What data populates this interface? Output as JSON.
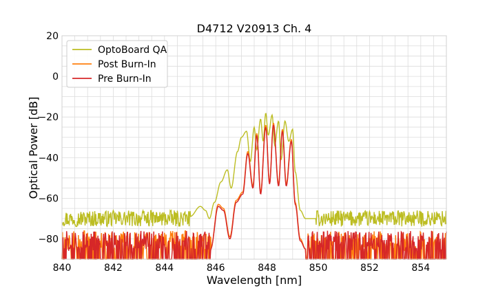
{
  "chart_data": {
    "type": "line",
    "title": "D4712 V20913 Ch. 4",
    "xlabel": "Wavelength [nm]",
    "ylabel": "Optical Power [dB]",
    "xlim": [
      840,
      855
    ],
    "ylim": [
      -90,
      20
    ],
    "xticks": [
      840,
      842,
      844,
      846,
      848,
      850,
      852,
      854
    ],
    "yticks": [
      -80,
      -60,
      -40,
      -20,
      0,
      20
    ],
    "grid": true,
    "legend_position": "top-left",
    "series": [
      {
        "name": "OptoBoard QA",
        "color": "#bcbd22",
        "noise_floor": -70,
        "x": [
          845.0,
          845.4,
          845.6,
          845.75,
          845.95,
          846.2,
          846.45,
          846.6,
          846.85,
          847.0,
          847.2,
          847.35,
          847.5,
          847.6,
          847.75,
          847.85,
          847.95,
          848.05,
          848.2,
          848.3,
          848.45,
          848.55,
          848.7,
          848.85,
          849.0,
          849.1,
          849.3,
          849.5,
          849.7,
          849.9
        ],
        "y": [
          -69,
          -64,
          -66,
          -70,
          -62,
          -52,
          -46,
          -55,
          -37,
          -30,
          -27,
          -42,
          -25,
          -36,
          -21,
          -32,
          -18,
          -29,
          -19,
          -34,
          -22,
          -41,
          -22,
          -32,
          -26,
          -47,
          -66,
          -70,
          -70,
          -70
        ]
      },
      {
        "name": "Post Burn-In",
        "color": "#ff7f0e",
        "noise_floor": -83,
        "x": [
          845.8,
          846.1,
          846.3,
          846.55,
          846.8,
          847.05,
          847.25,
          847.45,
          847.6,
          847.75,
          847.95,
          848.1,
          848.25,
          848.45,
          848.6,
          848.75,
          848.95,
          849.1,
          849.3,
          849.5
        ],
        "y": [
          -85,
          -63,
          -65,
          -79,
          -61,
          -57,
          -37,
          -54,
          -28,
          -57,
          -24,
          -52,
          -23,
          -53,
          -26,
          -53,
          -31,
          -62,
          -80,
          -85
        ]
      },
      {
        "name": "Pre Burn-In",
        "color": "#d62728",
        "noise_floor": -83,
        "x": [
          845.8,
          846.1,
          846.3,
          846.55,
          846.8,
          847.05,
          847.25,
          847.45,
          847.6,
          847.75,
          847.95,
          848.1,
          848.25,
          848.45,
          848.6,
          848.75,
          848.95,
          849.1,
          849.3,
          849.5
        ],
        "y": [
          -85,
          -64,
          -66,
          -80,
          -62,
          -58,
          -38,
          -55,
          -29,
          -58,
          -25,
          -53,
          -24,
          -54,
          -27,
          -54,
          -32,
          -63,
          -81,
          -85
        ]
      }
    ]
  }
}
